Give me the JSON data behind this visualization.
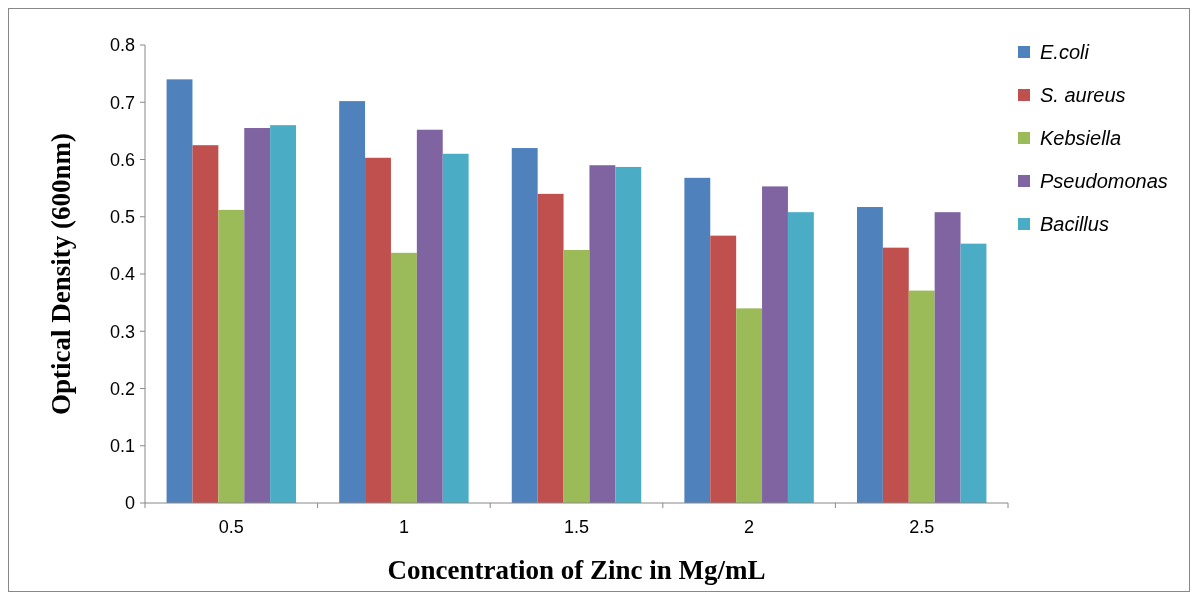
{
  "chart_data": {
    "type": "bar",
    "xlabel": "Concentration of Zinc in Mg/mL",
    "ylabel": "Optical Density (600nm)",
    "categories": [
      "0.5",
      "1",
      "1.5",
      "2",
      "2.5"
    ],
    "series": [
      {
        "name": "E.coli",
        "color": "#4f81bd",
        "values": [
          0.74,
          0.702,
          0.62,
          0.568,
          0.517
        ]
      },
      {
        "name": "S. aureus",
        "color": "#c0504d",
        "values": [
          0.625,
          0.603,
          0.54,
          0.467,
          0.446
        ]
      },
      {
        "name": "Kebsiella",
        "color": "#9bbb59",
        "values": [
          0.512,
          0.437,
          0.442,
          0.34,
          0.371
        ]
      },
      {
        "name": "Pseudomonas",
        "color": "#8064a2",
        "values": [
          0.655,
          0.652,
          0.59,
          0.553,
          0.508
        ]
      },
      {
        "name": "Bacillus",
        "color": "#4bacc6",
        "values": [
          0.66,
          0.61,
          0.587,
          0.508,
          0.453
        ]
      }
    ],
    "ylim": [
      0,
      0.8
    ],
    "yticks": [
      0,
      0.1,
      0.2,
      0.3,
      0.4,
      0.5,
      0.6,
      0.7,
      0.8
    ],
    "grid": false,
    "legend": "right"
  }
}
